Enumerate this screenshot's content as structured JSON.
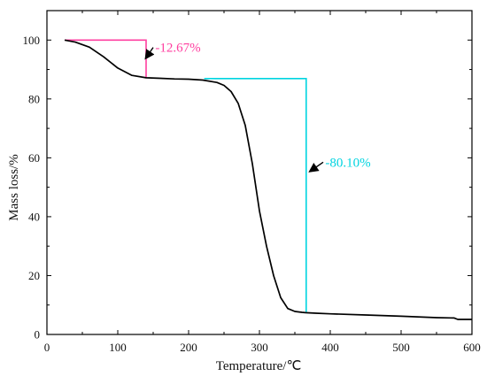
{
  "chart_data": {
    "type": "line",
    "title": "",
    "xlabel": "Temperature/℃",
    "ylabel": "Mass loss/%",
    "xlim": [
      0,
      600
    ],
    "ylim": [
      0,
      110
    ],
    "xticks": [
      0,
      100,
      200,
      300,
      400,
      500,
      600
    ],
    "yticks": [
      0,
      20,
      40,
      60,
      80,
      100
    ],
    "grid": false,
    "series": [
      {
        "color": "#000000",
        "x": [
          25,
          40,
          60,
          80,
          100,
          120,
          140,
          160,
          180,
          200,
          220,
          240,
          250,
          260,
          270,
          280,
          290,
          300,
          310,
          320,
          330,
          340,
          350,
          360,
          365,
          380,
          400,
          450,
          500,
          550,
          575,
          580,
          600
        ],
        "y": [
          100,
          99.3,
          97.6,
          94.3,
          90.5,
          88,
          87.2,
          87,
          86.8,
          86.7,
          86.4,
          85.6,
          84.6,
          82.5,
          78.5,
          71,
          58,
          42,
          30,
          20,
          12.5,
          8.8,
          7.8,
          7.5,
          7.4,
          7.2,
          7,
          6.6,
          6.2,
          5.7,
          5.6,
          5.1,
          5.1
        ]
      }
    ],
    "annotations": [
      {
        "text": "-12.67%",
        "color": "#ff3fa0",
        "step": {
          "x_start": 25,
          "x_end": 140,
          "y_high": 100,
          "y_low": 87.3
        },
        "arrow_from": [
          150,
          97.5
        ],
        "arrow_to": [
          140,
          94
        ],
        "text_at": [
          153,
          97.5
        ]
      },
      {
        "text": "-80.10%",
        "color": "#00d4e0",
        "step": {
          "x_start": 222,
          "x_end": 366,
          "y_high": 86.9,
          "y_low": 7.5
        },
        "arrow_from": [
          390,
          58.5
        ],
        "arrow_to": [
          372,
          55.5
        ],
        "text_at": [
          393,
          58.5
        ]
      }
    ]
  }
}
